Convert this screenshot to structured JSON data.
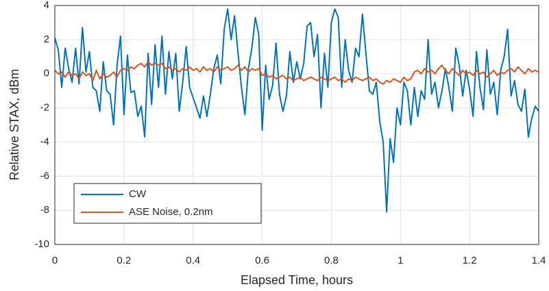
{
  "chart_data": {
    "type": "line",
    "xlabel": "Elapsed Time, hours",
    "ylabel": "Relative STAX, dBm",
    "x": [
      0,
      0.01,
      0.02,
      0.03,
      0.04,
      0.05,
      0.06,
      0.07,
      0.08,
      0.09,
      0.1,
      0.11,
      0.12,
      0.13,
      0.14,
      0.15,
      0.16,
      0.17,
      0.18,
      0.19,
      0.2,
      0.21,
      0.22,
      0.23,
      0.24,
      0.25,
      0.26,
      0.27,
      0.28,
      0.29,
      0.3,
      0.31,
      0.32,
      0.33,
      0.34,
      0.35,
      0.36,
      0.37,
      0.38,
      0.39,
      0.4,
      0.41,
      0.42,
      0.43,
      0.44,
      0.45,
      0.46,
      0.47,
      0.48,
      0.49,
      0.5,
      0.51,
      0.52,
      0.53,
      0.54,
      0.55,
      0.56,
      0.57,
      0.58,
      0.59,
      0.6,
      0.61,
      0.62,
      0.63,
      0.64,
      0.65,
      0.66,
      0.67,
      0.68,
      0.69,
      0.7,
      0.71,
      0.72,
      0.73,
      0.74,
      0.75,
      0.76,
      0.77,
      0.78,
      0.79,
      0.8,
      0.81,
      0.82,
      0.83,
      0.84,
      0.85,
      0.86,
      0.87,
      0.88,
      0.89,
      0.9,
      0.91,
      0.92,
      0.93,
      0.94,
      0.95,
      0.96,
      0.97,
      0.98,
      0.99,
      1,
      1.01,
      1.02,
      1.03,
      1.04,
      1.05,
      1.06,
      1.07,
      1.08,
      1.09,
      1.1,
      1.11,
      1.12,
      1.13,
      1.14,
      1.15,
      1.16,
      1.17,
      1.18,
      1.19,
      1.2,
      1.21,
      1.22,
      1.23,
      1.24,
      1.25,
      1.26,
      1.27,
      1.28,
      1.29,
      1.3,
      1.31,
      1.32,
      1.33,
      1.34,
      1.35,
      1.36,
      1.37,
      1.38,
      1.39,
      1.4
    ],
    "series": [
      {
        "name": "CW",
        "color": "#0072bd",
        "values": [
          2.1,
          1.4,
          -0.8,
          1.5,
          0.3,
          -0.5,
          1.5,
          -0.6,
          2.7,
          0.1,
          1.3,
          -0.8,
          -1.0,
          -2.2,
          0.7,
          -1.0,
          -1.2,
          -3.0,
          0.5,
          2.2,
          -2.4,
          1.1,
          -1.1,
          -1.0,
          -2.5,
          -1.9,
          -3.7,
          1.2,
          -1.8,
          1.7,
          -0.8,
          2.2,
          -1.2,
          1.3,
          -0.3,
          1.2,
          -2.2,
          -0.5,
          1.6,
          -0.8,
          -1.4,
          -2.0,
          -2.6,
          -1.3,
          -2.5,
          -1.2,
          0.3,
          1.1,
          -0.6,
          2.6,
          3.8,
          2.0,
          3.4,
          1.2,
          -0.8,
          -2.4,
          0.3,
          1.5,
          3.3,
          2.3,
          -3.3,
          0.5,
          -1.5,
          -0.7,
          1.8,
          -1.2,
          -2.2,
          -1.3,
          1.3,
          -0.5,
          0.7,
          -0.3,
          0.6,
          2.8,
          3.0,
          1.0,
          2.3,
          -2.0,
          1.2,
          -0.8,
          3.0,
          3.8,
          3.3,
          -0.8,
          2.0,
          0.2,
          -0.5,
          1.5,
          1.0,
          3.5,
          1.2,
          -1.0,
          -1.2,
          -0.5,
          -2.8,
          -4.0,
          -8.1,
          -3.8,
          -5.2,
          -2.0,
          -3.0,
          -0.5,
          -1.0,
          -3.0,
          -0.8,
          -2.5,
          -1.0,
          -1.5,
          2.0,
          -1.2,
          -0.5,
          -2.0,
          -1.0,
          0.3,
          -0.8,
          -2.2,
          1.5,
          0.5,
          -1.3,
          0.2,
          -0.9,
          -2.5,
          1.3,
          -0.8,
          -2.1,
          1.4,
          -1.2,
          -0.5,
          -2.4,
          0.2,
          1.0,
          2.6,
          -1.3,
          -0.4,
          -1.8,
          -2.2,
          -0.9,
          -3.7,
          -2.6,
          -1.9,
          -2.2
        ]
      },
      {
        "name": "ASE Noise, 0.2nm",
        "color": "#d95319",
        "values": [
          0.2,
          0.0,
          0.1,
          -0.2,
          0.1,
          -0.1,
          0.0,
          -0.3,
          0.1,
          -0.1,
          0.0,
          -0.4,
          0.2,
          -0.3,
          0.0,
          -0.2,
          -0.1,
          0.1,
          -0.2,
          0.2,
          0.3,
          0.2,
          0.4,
          0.3,
          0.5,
          0.6,
          0.4,
          0.7,
          0.5,
          0.6,
          0.5,
          0.6,
          0.3,
          0.4,
          0.2,
          0.3,
          0.1,
          0.3,
          0.2,
          0.4,
          0.2,
          0.3,
          0.1,
          0.4,
          0.2,
          0.3,
          0.1,
          0.4,
          0.2,
          0.3,
          0.4,
          0.2,
          0.3,
          0.5,
          0.2,
          0.4,
          0.1,
          0.3,
          0.2,
          0.3,
          -0.1,
          0.0,
          -0.2,
          -0.1,
          -0.3,
          -0.2,
          -0.1,
          -0.3,
          -0.2,
          -0.4,
          -0.3,
          -0.2,
          -0.4,
          -0.3,
          -0.2,
          -0.3,
          -0.4,
          -0.2,
          -0.3,
          -0.4,
          -0.3,
          -0.2,
          -0.4,
          -0.3,
          -0.5,
          -0.3,
          -0.4,
          -0.2,
          -0.3,
          -0.4,
          -0.3,
          -0.2,
          -0.4,
          -0.3,
          -0.5,
          -0.6,
          -0.4,
          -0.5,
          -0.3,
          -0.4,
          -0.5,
          -0.2,
          -0.4,
          -0.3,
          0.1,
          0.2,
          0.0,
          0.3,
          0.1,
          0.2,
          0.0,
          0.3,
          0.5,
          0.2,
          0.0,
          0.3,
          0.1,
          -0.1,
          0.2,
          0.0,
          0.1,
          -0.1,
          0.2,
          0.0,
          0.1,
          -0.2,
          0.0,
          0.2,
          -0.1,
          0.1,
          0.0,
          0.2,
          0.3,
          0.1,
          0.4,
          0.2,
          0.0,
          0.3,
          0.1,
          0.2,
          0.1
        ]
      }
    ],
    "xlim": [
      0,
      1.4
    ],
    "xticks": [
      0,
      0.2,
      0.4,
      0.6,
      0.8,
      1,
      1.2,
      1.4
    ],
    "ylim": [
      -10,
      4
    ],
    "yticks": [
      -10,
      -8,
      -6,
      -4,
      -2,
      0,
      2,
      4
    ],
    "grid": true,
    "legend": "lower left"
  }
}
